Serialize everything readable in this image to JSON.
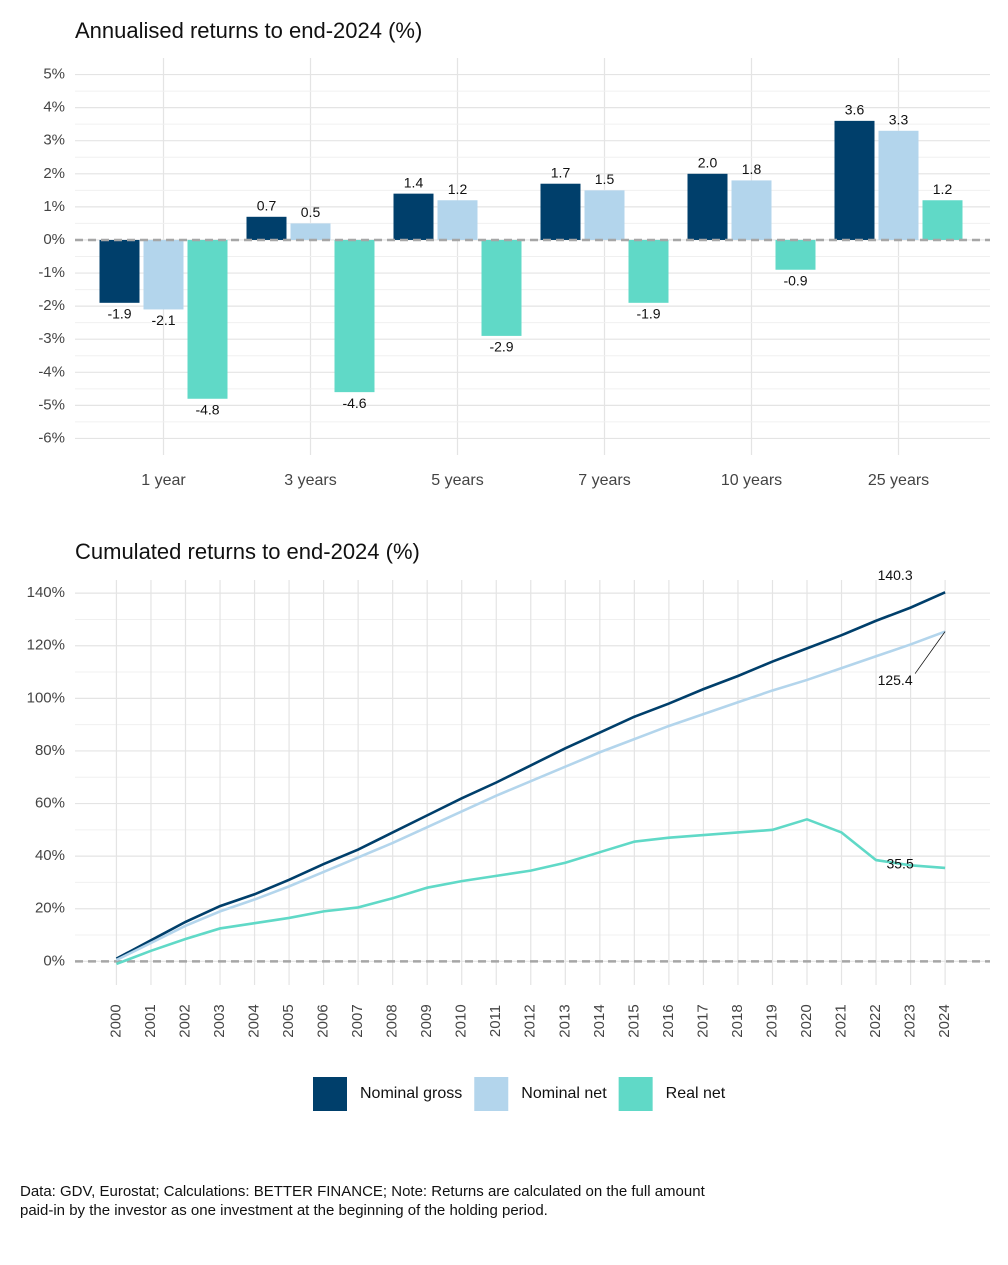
{
  "chart_data": [
    {
      "type": "bar",
      "title": "Annualised returns to end-2024 (%)",
      "categories": [
        "1 year",
        "3 years",
        "5 years",
        "7 years",
        "10 years",
        "25 years"
      ],
      "series": [
        {
          "name": "Nominal gross",
          "color": "#003f6b",
          "values": [
            -1.9,
            0.7,
            1.4,
            1.7,
            2.0,
            3.6
          ],
          "value_labels": [
            "-1.9",
            "0.7",
            "1.4",
            "1.7",
            "2.0",
            "3.6"
          ]
        },
        {
          "name": "Nominal net",
          "color": "#b3d5ec",
          "values": [
            -2.1,
            0.5,
            1.2,
            1.5,
            1.8,
            3.3
          ],
          "value_labels": [
            "-2.1",
            "0.5",
            "1.2",
            "1.5",
            "1.8",
            "3.3"
          ]
        },
        {
          "name": "Real net",
          "color": "#60d9c7",
          "values": [
            -4.8,
            -4.6,
            -2.9,
            -1.9,
            -0.9,
            1.2
          ],
          "value_labels": [
            "-4.8",
            "-4.6",
            "-2.9",
            "-1.9",
            "-0.9",
            "1.2"
          ]
        }
      ],
      "ylim": [
        -6.5,
        5.5
      ],
      "yticks": [
        {
          "value": -6,
          "label": "-6%"
        },
        {
          "value": -5,
          "label": "-5%"
        },
        {
          "value": -4,
          "label": "-4%"
        },
        {
          "value": -3,
          "label": "-3%"
        },
        {
          "value": -2,
          "label": "-2%"
        },
        {
          "value": -1,
          "label": "-1%"
        },
        {
          "value": 0,
          "label": "0%"
        },
        {
          "value": 1,
          "label": "1%"
        },
        {
          "value": 2,
          "label": "2%"
        },
        {
          "value": 3,
          "label": "3%"
        },
        {
          "value": 4,
          "label": "4%"
        },
        {
          "value": 5,
          "label": "5%"
        }
      ],
      "grid": true
    },
    {
      "type": "line",
      "title": "Cumulated returns to end-2024 (%)",
      "x": [
        2000,
        2001,
        2002,
        2003,
        2004,
        2005,
        2006,
        2007,
        2008,
        2009,
        2010,
        2011,
        2012,
        2013,
        2014,
        2015,
        2016,
        2017,
        2018,
        2019,
        2020,
        2021,
        2022,
        2023,
        2024
      ],
      "series": [
        {
          "name": "Nominal gross",
          "color": "#003f6b",
          "values": [
            1,
            8,
            15,
            21,
            25.5,
            31,
            37,
            42.5,
            49,
            55.5,
            62,
            68,
            74.5,
            81,
            87,
            93,
            98,
            103.5,
            108.5,
            114,
            119,
            124,
            129.5,
            134.5,
            140.3
          ]
        },
        {
          "name": "Nominal net",
          "color": "#b3d5ec",
          "values": [
            0.5,
            7,
            13.5,
            19,
            23.5,
            28.5,
            34,
            39.5,
            45,
            51,
            57,
            63,
            68.5,
            74,
            79.5,
            84.5,
            89.5,
            94,
            98.5,
            103,
            107,
            111.5,
            116,
            120.5,
            125.4
          ]
        },
        {
          "name": "Real net",
          "color": "#60d9c7",
          "values": [
            -1,
            4,
            8.5,
            12.5,
            14.5,
            16.5,
            19,
            20.5,
            24,
            28,
            30.5,
            32.5,
            34.5,
            37.5,
            41.5,
            45.5,
            47,
            48,
            49,
            50,
            54,
            49,
            38.5,
            36.5,
            35.5
          ]
        }
      ],
      "xlim": [
        1998.8,
        2025.3
      ],
      "ylim": [
        -9,
        145
      ],
      "yticks": [
        {
          "value": 0,
          "label": "0%"
        },
        {
          "value": 20,
          "label": "20%"
        },
        {
          "value": 40,
          "label": "40%"
        },
        {
          "value": 60,
          "label": "60%"
        },
        {
          "value": 80,
          "label": "80%"
        },
        {
          "value": 100,
          "label": "100%"
        },
        {
          "value": 120,
          "label": "120%"
        },
        {
          "value": 140,
          "label": "140%"
        }
      ],
      "grid": true,
      "legend": "bottom"
    }
  ],
  "footer": [
    "Data: GDV, Eurostat; Calculations: BETTER FINANCE; Note: Returns are calculated on the full amount",
    "paid-in by the investor as one investment at the beginning of the holding period."
  ]
}
